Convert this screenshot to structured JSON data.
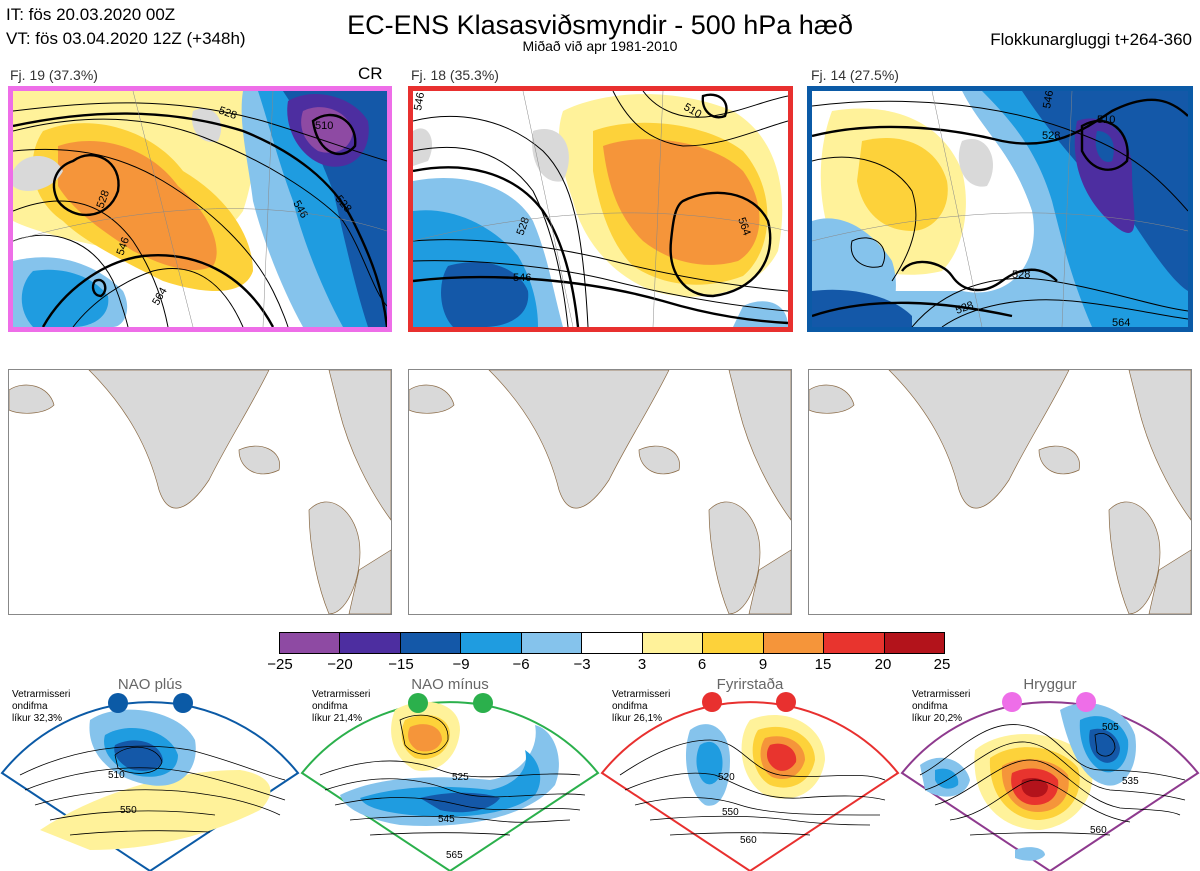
{
  "header": {
    "it_line": "IT: fös 20.03.2020 00Z",
    "vt_line": "VT: fös 03.04.2020 12Z  (+348h)",
    "title": "EC-ENS Klasasviðsmyndir - 500 hPa hæð",
    "subtitle": "Miðað við apr 1981-2010",
    "window": "Flokkunargluggi t+264-360"
  },
  "clusters": [
    {
      "label": "Fj. 19 (37.3%)",
      "tag": "CR",
      "border": "#ee6ee8",
      "contours": [
        "510",
        "528",
        "528",
        "528",
        "546",
        "546",
        "564"
      ]
    },
    {
      "label": "Fj. 18 (35.3%)",
      "tag": "",
      "border": "#e8302f",
      "contours": [
        "546",
        "510",
        "528",
        "546",
        "564",
        "564"
      ]
    },
    {
      "label": "Fj. 14 (27.5%)",
      "tag": "",
      "border": "#0b5aa6",
      "contours": [
        "510",
        "528",
        "528",
        "528",
        "546",
        "564"
      ]
    }
  ],
  "colorbar": {
    "ticks": [
      "−25",
      "−20",
      "−15",
      "−9",
      "−6",
      "−3",
      "3",
      "6",
      "9",
      "15",
      "20",
      "25"
    ],
    "colors": [
      "#8e4aa3",
      "#4d2ea0",
      "#1458a8",
      "#1f9ce0",
      "#85c3ec",
      "#ffffff",
      "#fff29a",
      "#fdd23a",
      "#f5953a",
      "#e8342e",
      "#b3131b"
    ]
  },
  "regimes": [
    {
      "title": "NAO plús",
      "note": [
        "Vetrarmisseri",
        "ondifma",
        "líkur 32,3%"
      ],
      "color": "#0b5aa6",
      "labels": [
        "510",
        "550"
      ]
    },
    {
      "title": "NAO mínus",
      "note": [
        "Vetrarmisseri",
        "ondifma",
        "líkur 21,4%"
      ],
      "color": "#2bb04c",
      "labels": [
        "525",
        "545",
        "565"
      ]
    },
    {
      "title": "Fyrirstaða",
      "note": [
        "Vetrarmisseri",
        "ondifma",
        "líkur 26,1%"
      ],
      "color": "#e8302f",
      "labels": [
        "520",
        "550",
        "560"
      ]
    },
    {
      "title": "Hryggur",
      "note": [
        "Vetrarmisseri",
        "ondifma",
        "líkur 20,2%"
      ],
      "color": "#8e3a8e",
      "labels": [
        "505",
        "535",
        "560"
      ]
    }
  ]
}
